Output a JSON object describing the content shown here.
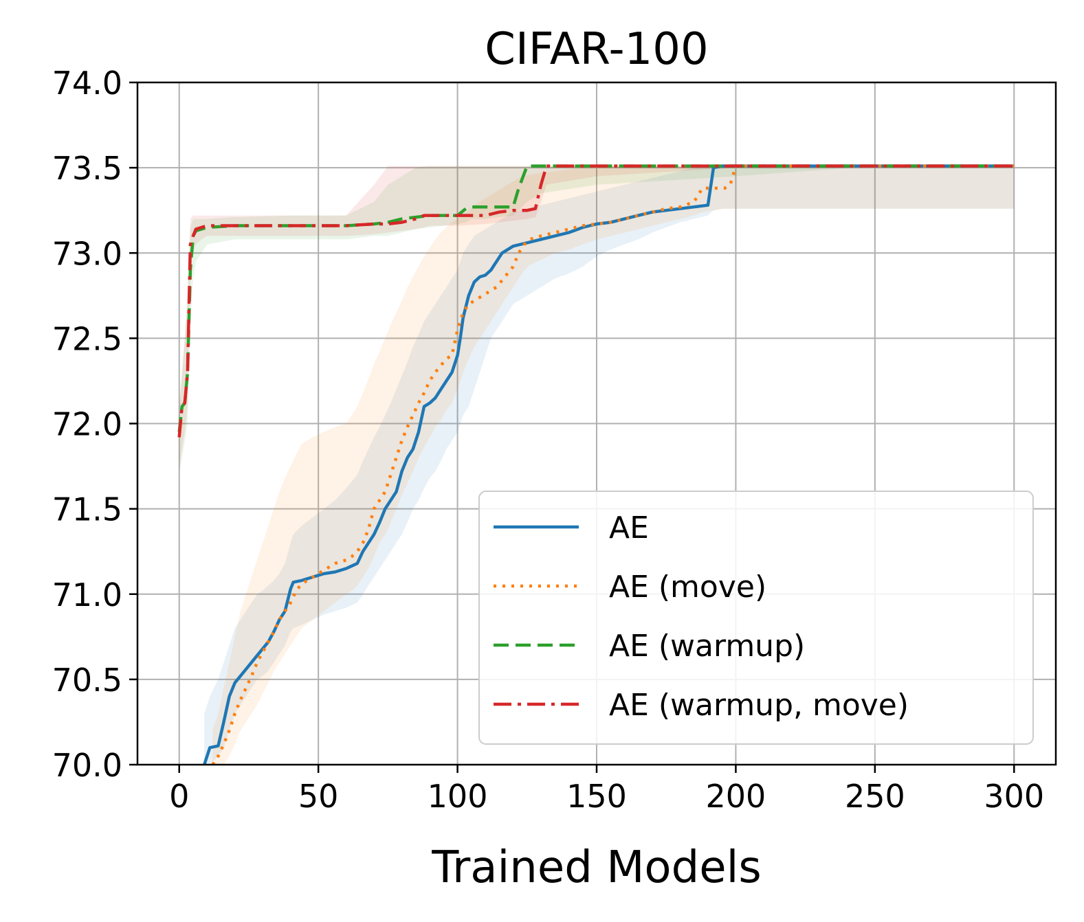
{
  "chart_data": {
    "type": "line",
    "title": "CIFAR-100",
    "xlabel": "Trained Models",
    "ylabel": "",
    "xlim": [
      -15,
      315
    ],
    "ylim": [
      70.0,
      74.0
    ],
    "xticks": [
      0,
      50,
      100,
      150,
      200,
      250,
      300
    ],
    "yticks": [
      70.0,
      70.5,
      71.0,
      71.5,
      72.0,
      72.5,
      73.0,
      73.5,
      74.0
    ],
    "ytick_labels": [
      "70.0",
      "70.5",
      "71.0",
      "71.5",
      "72.0",
      "72.5",
      "73.0",
      "73.5",
      "74.0"
    ],
    "grid": true,
    "legend_position": "lower-right",
    "series": [
      {
        "name": "AE",
        "color": "#1f77b4",
        "dash": "solid",
        "x": [
          9,
          11,
          14,
          16,
          18,
          20,
          22,
          24,
          26,
          28,
          30,
          32,
          34,
          36,
          38,
          40,
          41,
          44,
          48,
          52,
          56,
          60,
          64,
          66,
          68,
          70,
          72,
          74,
          76,
          78,
          80,
          82,
          84,
          86,
          88,
          90,
          92,
          94,
          96,
          98,
          100,
          101,
          102,
          104,
          106,
          108,
          110,
          112,
          114,
          116,
          118,
          120,
          125,
          130,
          135,
          140,
          145,
          150,
          155,
          160,
          165,
          170,
          175,
          180,
          185,
          190,
          192,
          195,
          200,
          250,
          300
        ],
        "values": [
          70.0,
          70.1,
          70.11,
          70.25,
          70.4,
          70.48,
          70.52,
          70.56,
          70.6,
          70.64,
          70.68,
          70.72,
          70.78,
          70.85,
          70.9,
          71.03,
          71.07,
          71.08,
          71.1,
          71.12,
          71.13,
          71.15,
          71.18,
          71.25,
          71.3,
          71.35,
          71.42,
          71.5,
          71.55,
          71.6,
          71.72,
          71.8,
          71.85,
          71.95,
          72.1,
          72.12,
          72.15,
          72.2,
          72.25,
          72.3,
          72.4,
          72.5,
          72.62,
          72.75,
          72.83,
          72.86,
          72.87,
          72.9,
          72.95,
          73.0,
          73.02,
          73.04,
          73.06,
          73.08,
          73.1,
          73.12,
          73.15,
          73.17,
          73.18,
          73.2,
          73.22,
          73.24,
          73.25,
          73.26,
          73.27,
          73.28,
          73.5,
          73.51,
          73.51,
          73.51,
          73.51
        ],
        "band_low": [
          69.9,
          70.0,
          70.05,
          70.1,
          70.2,
          70.3,
          70.35,
          70.4,
          70.45,
          70.5,
          70.52,
          70.55,
          70.6,
          70.65,
          70.7,
          70.78,
          70.8,
          70.82,
          70.85,
          70.88,
          70.9,
          70.92,
          70.95,
          71.0,
          71.05,
          71.1,
          71.15,
          71.2,
          71.25,
          71.3,
          71.35,
          71.42,
          71.5,
          71.55,
          71.62,
          71.68,
          71.72,
          71.78,
          71.85,
          71.9,
          71.95,
          72.0,
          72.05,
          72.1,
          72.2,
          72.3,
          72.4,
          72.5,
          72.55,
          72.6,
          72.65,
          72.7,
          72.75,
          72.8,
          72.85,
          72.88,
          72.92,
          72.98,
          73.02,
          73.05,
          73.08,
          73.12,
          73.15,
          73.18,
          73.2,
          73.22,
          73.25,
          73.26,
          73.26,
          73.26,
          73.26
        ],
        "band_high": [
          70.3,
          70.4,
          70.5,
          70.6,
          70.7,
          70.8,
          70.85,
          70.9,
          70.95,
          71.0,
          71.02,
          71.05,
          71.08,
          71.12,
          71.18,
          71.3,
          71.35,
          71.4,
          71.45,
          71.5,
          71.55,
          71.62,
          71.7,
          71.78,
          71.85,
          71.92,
          71.98,
          72.05,
          72.12,
          72.2,
          72.28,
          72.36,
          72.45,
          72.52,
          72.6,
          72.65,
          72.7,
          72.75,
          72.8,
          72.85,
          72.9,
          72.95,
          73.0,
          73.05,
          73.1,
          73.12,
          73.14,
          73.16,
          73.18,
          73.2,
          73.22,
          73.24,
          73.26,
          73.28,
          73.3,
          73.32,
          73.34,
          73.36,
          73.38,
          73.4,
          73.42,
          73.44,
          73.46,
          73.48,
          73.5,
          73.51,
          73.51,
          73.51,
          73.51,
          73.51,
          73.51
        ]
      },
      {
        "name": "AE (move)",
        "color": "#ff7f0e",
        "dash": "dotted",
        "x": [
          12,
          14,
          16,
          18,
          20,
          22,
          24,
          26,
          28,
          30,
          32,
          34,
          36,
          38,
          40,
          42,
          44,
          48,
          52,
          56,
          60,
          62,
          64,
          66,
          68,
          70,
          72,
          74,
          76,
          78,
          80,
          82,
          84,
          86,
          88,
          90,
          92,
          94,
          96,
          98,
          100,
          102,
          104,
          106,
          108,
          110,
          112,
          114,
          116,
          118,
          120,
          122,
          124,
          126,
          130,
          135,
          140,
          145,
          150,
          155,
          160,
          165,
          170,
          175,
          180,
          185,
          188,
          192,
          196,
          198,
          200,
          250,
          300
        ],
        "values": [
          70.0,
          70.05,
          70.12,
          70.2,
          70.3,
          70.38,
          70.45,
          70.52,
          70.6,
          70.66,
          70.72,
          70.78,
          70.85,
          70.9,
          70.95,
          71.02,
          71.06,
          71.1,
          71.14,
          71.18,
          71.2,
          71.22,
          71.25,
          71.3,
          71.38,
          71.5,
          71.55,
          71.6,
          71.7,
          71.8,
          71.9,
          71.98,
          72.05,
          72.12,
          72.18,
          72.25,
          72.3,
          72.34,
          72.38,
          72.4,
          72.55,
          72.65,
          72.7,
          72.72,
          72.74,
          72.76,
          72.78,
          72.8,
          72.84,
          72.88,
          72.92,
          73.0,
          73.05,
          73.08,
          73.1,
          73.12,
          73.14,
          73.16,
          73.17,
          73.18,
          73.2,
          73.22,
          73.24,
          73.26,
          73.27,
          73.3,
          73.38,
          73.38,
          73.38,
          73.4,
          73.51,
          73.51,
          73.51
        ],
        "band_low": [
          69.9,
          69.95,
          70.0,
          70.05,
          70.12,
          70.2,
          70.25,
          70.3,
          70.35,
          70.42,
          70.48,
          70.55,
          70.6,
          70.65,
          70.7,
          70.75,
          70.8,
          70.85,
          70.9,
          70.95,
          71.0,
          71.02,
          71.05,
          71.1,
          71.15,
          71.22,
          71.3,
          71.35,
          71.42,
          71.5,
          71.58,
          71.65,
          71.72,
          71.8,
          71.86,
          71.92,
          71.98,
          72.02,
          72.08,
          72.12,
          72.2,
          72.3,
          72.38,
          72.45,
          72.5,
          72.55,
          72.6,
          72.65,
          72.7,
          72.75,
          72.8,
          72.85,
          72.9,
          72.93,
          72.96,
          73.0,
          73.02,
          73.05,
          73.08,
          73.1,
          73.12,
          73.14,
          73.16,
          73.18,
          73.2,
          73.22,
          73.24,
          73.25,
          73.26,
          73.26,
          73.26,
          73.26,
          73.26
        ],
        "band_high": [
          70.2,
          70.3,
          70.45,
          70.6,
          70.75,
          70.9,
          71.0,
          71.1,
          71.2,
          71.3,
          71.4,
          71.5,
          71.6,
          71.68,
          71.75,
          71.82,
          71.88,
          71.92,
          71.95,
          71.98,
          72.0,
          72.05,
          72.1,
          72.18,
          72.26,
          72.35,
          72.42,
          72.5,
          72.58,
          72.65,
          72.72,
          72.8,
          72.86,
          72.92,
          72.98,
          73.03,
          73.08,
          73.12,
          73.15,
          73.18,
          73.2,
          73.22,
          73.25,
          73.28,
          73.3,
          73.32,
          73.34,
          73.36,
          73.38,
          73.4,
          73.42,
          73.44,
          73.45,
          73.46,
          73.47,
          73.48,
          73.49,
          73.5,
          73.5,
          73.51,
          73.51,
          73.51,
          73.51,
          73.51,
          73.51,
          73.51,
          73.51,
          73.51,
          73.51,
          73.51,
          73.51,
          73.51,
          73.51
        ]
      },
      {
        "name": "AE (warmup)",
        "color": "#2ca02c",
        "dash": "dashed",
        "x": [
          0,
          1,
          2,
          3,
          4,
          5,
          6,
          8,
          10,
          20,
          40,
          60,
          70,
          75,
          80,
          85,
          90,
          95,
          100,
          103,
          105,
          110,
          115,
          120,
          122,
          125,
          130,
          150,
          200,
          250,
          300
        ],
        "values": [
          71.95,
          72.1,
          72.12,
          72.3,
          72.9,
          73.1,
          73.13,
          73.14,
          73.15,
          73.16,
          73.16,
          73.16,
          73.17,
          73.18,
          73.2,
          73.21,
          73.22,
          73.22,
          73.22,
          73.26,
          73.27,
          73.27,
          73.27,
          73.27,
          73.38,
          73.51,
          73.51,
          73.51,
          73.51,
          73.51,
          73.51
        ],
        "band_low": [
          71.7,
          71.8,
          71.9,
          72.0,
          72.6,
          72.85,
          72.95,
          73.0,
          73.05,
          73.08,
          73.08,
          73.08,
          73.1,
          73.1,
          73.12,
          73.14,
          73.15,
          73.16,
          73.17,
          73.18,
          73.2,
          73.2,
          73.21,
          73.22,
          73.25,
          73.3,
          73.35,
          73.4,
          73.45,
          73.51,
          73.51
        ],
        "band_high": [
          72.1,
          72.3,
          72.5,
          72.8,
          73.15,
          73.2,
          73.2,
          73.2,
          73.2,
          73.21,
          73.22,
          73.22,
          73.3,
          73.4,
          73.45,
          73.5,
          73.51,
          73.51,
          73.51,
          73.51,
          73.51,
          73.51,
          73.51,
          73.51,
          73.51,
          73.51,
          73.51,
          73.51,
          73.51,
          73.51,
          73.51
        ]
      },
      {
        "name": "AE (warmup, move)",
        "color": "#d62728",
        "dash": "dashdot",
        "x": [
          0,
          1,
          2,
          3,
          4,
          5,
          6,
          8,
          10,
          20,
          40,
          60,
          70,
          75,
          80,
          85,
          88,
          90,
          100,
          110,
          115,
          120,
          125,
          128,
          130,
          132,
          150,
          200,
          250,
          300
        ],
        "values": [
          71.92,
          72.1,
          72.12,
          72.3,
          73.05,
          73.1,
          73.14,
          73.15,
          73.16,
          73.16,
          73.16,
          73.16,
          73.17,
          73.17,
          73.18,
          73.2,
          73.22,
          73.22,
          73.22,
          73.22,
          73.24,
          73.25,
          73.25,
          73.26,
          73.4,
          73.51,
          73.51,
          73.51,
          73.51,
          73.51
        ],
        "band_low": [
          71.75,
          71.85,
          71.95,
          72.1,
          72.9,
          73.0,
          73.05,
          73.08,
          73.1,
          73.1,
          73.1,
          73.1,
          73.11,
          73.12,
          73.13,
          73.14,
          73.15,
          73.16,
          73.16,
          73.17,
          73.18,
          73.19,
          73.2,
          73.21,
          73.3,
          73.4,
          73.45,
          73.5,
          73.51,
          73.51
        ],
        "band_high": [
          72.1,
          72.3,
          72.5,
          72.7,
          73.2,
          73.22,
          73.22,
          73.22,
          73.22,
          73.22,
          73.22,
          73.22,
          73.4,
          73.51,
          73.51,
          73.51,
          73.51,
          73.51,
          73.51,
          73.51,
          73.51,
          73.51,
          73.51,
          73.51,
          73.51,
          73.51,
          73.51,
          73.51,
          73.51,
          73.51
        ]
      }
    ]
  }
}
